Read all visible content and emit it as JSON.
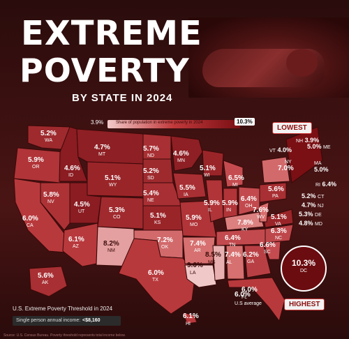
{
  "title": {
    "line1": "EXTREME",
    "line2": "POVERTY",
    "subtitle": "BY STATE IN 2024"
  },
  "legend": {
    "min": "3.9%",
    "max": "10.3%",
    "caption": "Share of population in extreme poverty in 2024"
  },
  "tags": {
    "lowest": "LOWEST",
    "highest": "HIGHEST"
  },
  "colors": {
    "light": "#e8a6a6",
    "mid": "#c0393b",
    "dark": "#7a0f14",
    "bg": "#2a0c0c"
  },
  "states": [
    {
      "abbr": "WA",
      "value": "5.2%"
    },
    {
      "abbr": "OR",
      "value": "5.9%"
    },
    {
      "abbr": "CA",
      "value": "6.0%"
    },
    {
      "abbr": "ID",
      "value": "4.6%"
    },
    {
      "abbr": "NV",
      "value": "5.8%"
    },
    {
      "abbr": "MT",
      "value": "4.7%"
    },
    {
      "abbr": "WY",
      "value": "5.1%"
    },
    {
      "abbr": "UT",
      "value": "4.5%"
    },
    {
      "abbr": "AZ",
      "value": "6.1%"
    },
    {
      "abbr": "CO",
      "value": "5.3%"
    },
    {
      "abbr": "NM",
      "value": "8.2%"
    },
    {
      "abbr": "ND",
      "value": "5.7%"
    },
    {
      "abbr": "SD",
      "value": "5.2%"
    },
    {
      "abbr": "NE",
      "value": "5.4%"
    },
    {
      "abbr": "KS",
      "value": "5.1%"
    },
    {
      "abbr": "OK",
      "value": "7.2%"
    },
    {
      "abbr": "TX",
      "value": "6.0%"
    },
    {
      "abbr": "MN",
      "value": "4.6%"
    },
    {
      "abbr": "IA",
      "value": "5.5%"
    },
    {
      "abbr": "MO",
      "value": "5.9%"
    },
    {
      "abbr": "AR",
      "value": "7.4%"
    },
    {
      "abbr": "LA",
      "value": "9.0%"
    },
    {
      "abbr": "WI",
      "value": "5.1%"
    },
    {
      "abbr": "IL",
      "value": "5.9%"
    },
    {
      "abbr": "MI",
      "value": "6.5%"
    },
    {
      "abbr": "IN",
      "value": "5.9%"
    },
    {
      "abbr": "OH",
      "value": "6.4%"
    },
    {
      "abbr": "KY",
      "value": "7.8%"
    },
    {
      "abbr": "TN",
      "value": "6.4%"
    },
    {
      "abbr": "MS",
      "value": "8.5%"
    },
    {
      "abbr": "AL",
      "value": "7.4%"
    },
    {
      "abbr": "GA",
      "value": "6.2%"
    },
    {
      "abbr": "FL",
      "value": "6.0%"
    },
    {
      "abbr": "SC",
      "value": "6.6%"
    },
    {
      "abbr": "NC",
      "value": "6.3%"
    },
    {
      "abbr": "VA",
      "value": "5.1%"
    },
    {
      "abbr": "WV",
      "value": "7.6%"
    },
    {
      "abbr": "PA",
      "value": "5.6%"
    },
    {
      "abbr": "NY",
      "value": "7.0%"
    },
    {
      "abbr": "AK",
      "value": "5.6%"
    },
    {
      "abbr": "HI",
      "value": "6.1%"
    }
  ],
  "northeast": [
    {
      "abbr": "NH",
      "value": "3.9%"
    },
    {
      "abbr": "VT",
      "value": "4.0%"
    },
    {
      "abbr": "ME",
      "value": "5.0%"
    },
    {
      "abbr": "MA",
      "value": "5.0%"
    },
    {
      "abbr": "RI",
      "value": "6.4%"
    },
    {
      "abbr": "CT",
      "value": "5.2%"
    },
    {
      "abbr": "NJ",
      "value": "4.7%"
    },
    {
      "abbr": "DE",
      "value": "5.3%"
    },
    {
      "abbr": "MD",
      "value": "4.8%"
    }
  ],
  "dc": {
    "value": "10.3%",
    "abbr": "DC"
  },
  "us_average": {
    "value": "6.0%",
    "label": "U.S average"
  },
  "threshold": {
    "heading": "U.S. Extreme Poverty Threshold in 2024",
    "key": "Single person annual income:",
    "value": "<$8,160"
  },
  "source": "Source: U.S. Census Bureau. Poverty threshold represents total income below."
}
